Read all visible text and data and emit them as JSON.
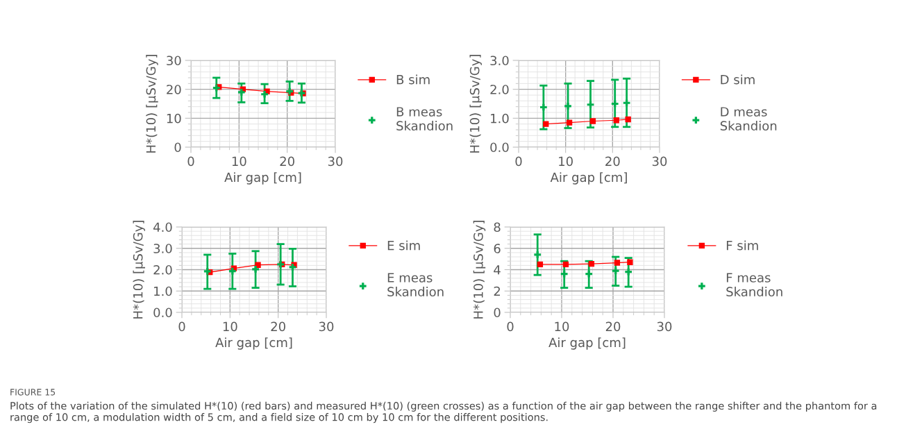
{
  "chart_data": [
    {
      "type": "line",
      "xlabel": "Air gap [cm]",
      "ylabel": "H*(10) [µSv/Gy]",
      "xlim": [
        0,
        30
      ],
      "xticks": [
        0,
        10,
        20,
        30
      ],
      "ylim": [
        0,
        30
      ],
      "yticks": [
        0,
        10,
        20,
        30
      ],
      "grid": true,
      "legend": "right",
      "series": [
        {
          "name": "B sim",
          "color": "#ff0000",
          "marker": "square",
          "x": [
            5.8,
            10.8,
            15.8,
            20.8,
            23.3
          ],
          "values": [
            20.8,
            20.0,
            19.3,
            18.8,
            18.6
          ]
        },
        {
          "name": "B meas\nSkandion",
          "type": "scatter",
          "color": "#00b050",
          "marker": "cross",
          "x": [
            5.3,
            10.5,
            15.3,
            20.5,
            23.0
          ],
          "values": [
            20.5,
            19.0,
            18.3,
            19.3,
            18.7
          ],
          "errors": [
            [
              17.0,
              24.0
            ],
            [
              15.5,
              22.0
            ],
            [
              15.2,
              21.8
            ],
            [
              16.0,
              22.7
            ],
            [
              15.4,
              22.0
            ]
          ]
        }
      ]
    },
    {
      "type": "line",
      "xlabel": "Air gap [cm]",
      "ylabel": "H*(10) [µSv/Gy]",
      "xlim": [
        0,
        30
      ],
      "xticks": [
        0,
        10,
        20,
        30
      ],
      "ylim": [
        0,
        3
      ],
      "yticks": [
        {
          "value": 0,
          "label": "0.0"
        },
        {
          "value": 1,
          "label": "1.0"
        },
        {
          "value": 2,
          "label": "2.0"
        },
        {
          "value": 3,
          "label": "3.0"
        }
      ],
      "grid": true,
      "legend": "right",
      "series": [
        {
          "name": "D sim",
          "color": "#ff0000",
          "marker": "square",
          "x": [
            5.8,
            10.8,
            15.8,
            20.8,
            23.3
          ],
          "values": [
            0.8,
            0.85,
            0.9,
            0.93,
            0.96
          ]
        },
        {
          "name": "D meas\nSkandion",
          "type": "scatter",
          "color": "#00b050",
          "marker": "cross",
          "x": [
            5.3,
            10.5,
            15.3,
            20.5,
            23.0
          ],
          "values": [
            1.38,
            1.42,
            1.47,
            1.5,
            1.53
          ],
          "errors": [
            [
              0.62,
              2.13
            ],
            [
              0.66,
              2.2
            ],
            [
              0.68,
              2.29
            ],
            [
              0.7,
              2.33
            ],
            [
              0.7,
              2.37
            ]
          ]
        }
      ]
    },
    {
      "type": "line",
      "xlabel": "Air gap [cm]",
      "ylabel": "H*(10) [µSv/Gy]",
      "xlim": [
        0,
        30
      ],
      "xticks": [
        0,
        10,
        20,
        30
      ],
      "ylim": [
        0,
        4
      ],
      "yticks": [
        {
          "value": 0,
          "label": "0.0"
        },
        {
          "value": 1,
          "label": "1.0"
        },
        {
          "value": 2,
          "label": "2.0"
        },
        {
          "value": 3,
          "label": "3.0"
        },
        {
          "value": 4,
          "label": "4.0"
        }
      ],
      "grid": true,
      "legend": "right",
      "series": [
        {
          "name": "E sim",
          "color": "#ff0000",
          "marker": "square",
          "x": [
            5.8,
            10.8,
            15.8,
            20.8,
            23.3
          ],
          "values": [
            1.88,
            2.06,
            2.22,
            2.25,
            2.22
          ]
        },
        {
          "name": "E meas\nSkandion",
          "type": "scatter",
          "color": "#00b050",
          "marker": "cross",
          "x": [
            5.3,
            10.5,
            15.3,
            20.5,
            23.0
          ],
          "values": [
            1.92,
            1.93,
            2.02,
            2.25,
            2.12
          ],
          "errors": [
            [
              1.1,
              2.7
            ],
            [
              1.1,
              2.75
            ],
            [
              1.15,
              2.87
            ],
            [
              1.3,
              3.2
            ],
            [
              1.22,
              2.98
            ]
          ]
        }
      ]
    },
    {
      "type": "line",
      "xlabel": "Air gap [cm]",
      "ylabel": "H*(10) [µSv/Gy]",
      "xlim": [
        0,
        30
      ],
      "xticks": [
        0,
        10,
        20,
        30
      ],
      "ylim": [
        0,
        8
      ],
      "yticks": [
        0,
        2,
        4,
        6,
        8
      ],
      "grid": true,
      "legend": "right",
      "annotations": [
        "FIGURE 15",
        "Plots of the variation of the simulated H*(10) (red bars) and measured H*(10) (green crosses) as a function of the air gap between the range shifter and the phantom for a range of 10 cm, a modulation width of 5 cm, and a field size of 10 cm by 10 cm for the different positions."
      ],
      "series": [
        {
          "name": "F sim",
          "color": "#ff0000",
          "marker": "square",
          "x": [
            5.8,
            10.8,
            15.8,
            20.8,
            23.3
          ],
          "values": [
            4.5,
            4.5,
            4.55,
            4.65,
            4.7
          ]
        },
        {
          "name": "F meas\nSkandion",
          "type": "scatter",
          "color": "#00b050",
          "marker": "cross",
          "x": [
            5.3,
            10.5,
            15.3,
            20.5,
            23.0
          ],
          "values": [
            5.4,
            3.6,
            3.6,
            3.9,
            3.8
          ],
          "errors": [
            [
              3.5,
              7.3
            ],
            [
              2.3,
              4.8
            ],
            [
              2.3,
              4.8
            ],
            [
              2.5,
              5.2
            ],
            [
              2.4,
              5.1
            ]
          ]
        }
      ]
    }
  ]
}
